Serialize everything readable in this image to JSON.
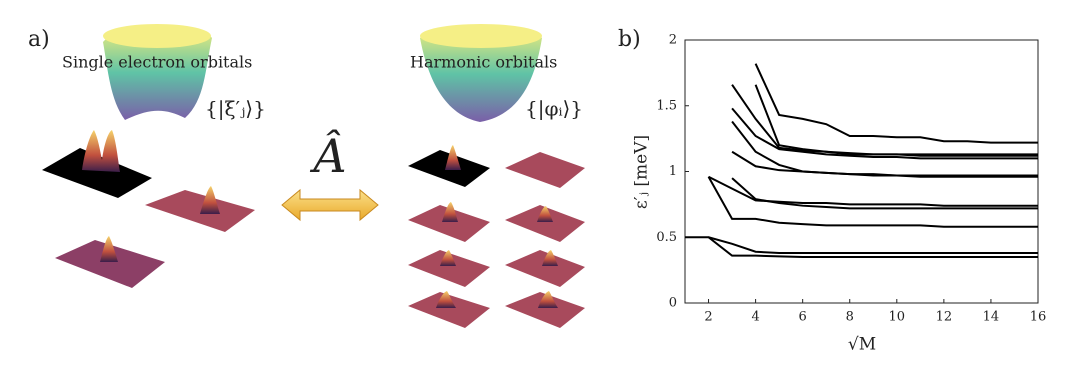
{
  "panel_a": {
    "label": "a)",
    "left_title": "Single electron orbitals",
    "right_title": "Harmonic orbitals",
    "operator": "Â",
    "left_set": "{|ξ′ⱼ⟩}",
    "right_set": "{|φᵢ⟩}"
  },
  "chart_data": {
    "type": "line",
    "label": "b)",
    "xlabel": "√M",
    "ylabel": "ε′ⱼ [meV]",
    "x": [
      1,
      2,
      3,
      4,
      5,
      6,
      7,
      8,
      9,
      10,
      11,
      12,
      13,
      14,
      15,
      16
    ],
    "xlim": [
      1,
      16
    ],
    "ylim": [
      0,
      2
    ],
    "xticks": [
      2,
      4,
      6,
      8,
      10,
      12,
      14,
      16
    ],
    "yticks": [
      0,
      0.5,
      1,
      1.5,
      2
    ],
    "series": [
      {
        "color": "#000000",
        "values": [
          0.5,
          0.5,
          0.36,
          0.36,
          0.355,
          0.35,
          0.35,
          0.35,
          0.35,
          0.35,
          0.35,
          0.35,
          0.35,
          0.35,
          0.35,
          0.35
        ]
      },
      {
        "color": "#000000",
        "values": [
          null,
          0.5,
          0.45,
          0.39,
          0.38,
          0.38,
          0.38,
          0.38,
          0.38,
          0.38,
          0.38,
          0.38,
          0.38,
          0.38,
          0.38,
          0.38
        ]
      },
      {
        "color": "#000000",
        "values": [
          null,
          0.96,
          0.64,
          0.64,
          0.61,
          0.6,
          0.59,
          0.59,
          0.59,
          0.59,
          0.59,
          0.58,
          0.58,
          0.58,
          0.58,
          0.58
        ]
      },
      {
        "color": "#000000",
        "values": [
          null,
          0.96,
          0.87,
          0.78,
          0.77,
          0.76,
          0.76,
          0.75,
          0.75,
          0.75,
          0.75,
          0.74,
          0.74,
          0.74,
          0.74,
          0.74
        ]
      },
      {
        "color": "#000000",
        "values": [
          null,
          null,
          0.95,
          0.79,
          0.76,
          0.74,
          0.73,
          0.72,
          0.72,
          0.72,
          0.72,
          0.72,
          0.72,
          0.72,
          0.72,
          0.72
        ]
      },
      {
        "color": "#000000",
        "values": [
          null,
          null,
          1.15,
          1.04,
          1.01,
          1.0,
          0.99,
          0.98,
          0.98,
          0.97,
          0.97,
          0.97,
          0.97,
          0.97,
          0.97,
          0.97
        ]
      },
      {
        "color": "#000000",
        "values": [
          null,
          null,
          1.38,
          1.15,
          1.05,
          1.0,
          0.99,
          0.98,
          0.97,
          0.97,
          0.96,
          0.96,
          0.96,
          0.96,
          0.96,
          0.96
        ]
      },
      {
        "color": "#000000",
        "values": [
          null,
          null,
          1.48,
          1.27,
          1.17,
          1.15,
          1.13,
          1.12,
          1.11,
          1.11,
          1.1,
          1.1,
          1.1,
          1.1,
          1.1,
          1.1
        ]
      },
      {
        "color": "#000000",
        "values": [
          null,
          null,
          1.66,
          1.4,
          1.18,
          1.16,
          1.15,
          1.14,
          1.13,
          1.13,
          1.12,
          1.12,
          1.12,
          1.12,
          1.12,
          1.12
        ]
      },
      {
        "color": "#000000",
        "values": [
          null,
          null,
          null,
          1.66,
          1.2,
          1.17,
          1.15,
          1.13,
          1.13,
          1.13,
          1.13,
          1.13,
          1.13,
          1.13,
          1.13,
          1.13
        ]
      },
      {
        "color": "#000000",
        "values": [
          null,
          null,
          null,
          1.82,
          1.43,
          1.4,
          1.36,
          1.27,
          1.27,
          1.26,
          1.26,
          1.23,
          1.23,
          1.22,
          1.22,
          1.22
        ]
      }
    ]
  }
}
